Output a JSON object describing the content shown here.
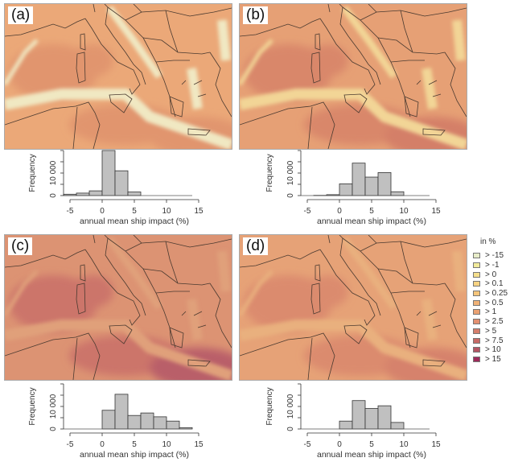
{
  "panels": [
    {
      "label": "(a)",
      "colors": {
        "base": "#eba878",
        "dark": "#e1956e",
        "darker": "#e1956e",
        "lane": "#f0e8c2"
      }
    },
    {
      "label": "(b)",
      "colors": {
        "base": "#e6a075",
        "dark": "#d9876b",
        "darker": "#d47f68",
        "lane": "#f2d596"
      }
    },
    {
      "label": "(c)",
      "colors": {
        "base": "#dc9373",
        "dark": "#cc746a",
        "darker": "#b95f69",
        "lane": "#e0a07a"
      }
    },
    {
      "label": "(d)",
      "colors": {
        "base": "#e6a277",
        "dark": "#db8b6e",
        "darker": "#d6826c",
        "lane": "#e9b07e"
      }
    }
  ],
  "legend": {
    "title": "in %",
    "items": [
      {
        "label": "> -15",
        "color": "#e7ecc8"
      },
      {
        "label": "> -1",
        "color": "#f1ea9a"
      },
      {
        "label": "> 0",
        "color": "#f5df8c"
      },
      {
        "label": "> 0.1",
        "color": "#f7d383"
      },
      {
        "label": "> 0.25",
        "color": "#f5c57c"
      },
      {
        "label": "> 0.5",
        "color": "#f0b277"
      },
      {
        "label": "> 1",
        "color": "#eaa172"
      },
      {
        "label": "> 2.5",
        "color": "#e39070"
      },
      {
        "label": "> 5",
        "color": "#d57e6c"
      },
      {
        "label": "> 7.5",
        "color": "#c86a66"
      },
      {
        "label": "> 10",
        "color": "#b55563"
      },
      {
        "label": "> 15",
        "color": "#9e2a5a"
      }
    ]
  },
  "chart_data": [
    {
      "type": "bar",
      "panel": "(a)",
      "xlabel": "annual mean ship impact (%)",
      "ylabel": "Frequency",
      "xticks": [
        -5,
        0,
        5,
        10,
        15
      ],
      "yticks": [
        {
          "v": 0,
          "label": "0"
        },
        {
          "v": 10000,
          "label": "10 000"
        }
      ],
      "xlim": [
        -5,
        15
      ],
      "ylim": [
        0,
        20000
      ],
      "bins": [
        {
          "from": -6,
          "to": -4,
          "count": 600
        },
        {
          "from": -4,
          "to": -2,
          "count": 1100
        },
        {
          "from": -2,
          "to": 0,
          "count": 2100
        },
        {
          "from": 0,
          "to": 2,
          "count": 20000
        },
        {
          "from": 2,
          "to": 4,
          "count": 11000
        },
        {
          "from": 4,
          "to": 6,
          "count": 1600
        }
      ]
    },
    {
      "type": "bar",
      "panel": "(b)",
      "xlabel": "annual mean ship impact (%)",
      "ylabel": "Frequency",
      "xticks": [
        -5,
        0,
        5,
        10,
        15
      ],
      "yticks": [
        {
          "v": 0,
          "label": "0"
        },
        {
          "v": 10000,
          "label": "10 000"
        }
      ],
      "xlim": [
        -5,
        15
      ],
      "ylim": [
        0,
        20000
      ],
      "bins": [
        {
          "from": -4,
          "to": -2,
          "count": 100
        },
        {
          "from": -2,
          "to": 0,
          "count": 400
        },
        {
          "from": 0,
          "to": 2,
          "count": 5200
        },
        {
          "from": 2,
          "to": 4,
          "count": 14400
        },
        {
          "from": 4,
          "to": 6,
          "count": 8200
        },
        {
          "from": 6,
          "to": 8,
          "count": 10200
        },
        {
          "from": 8,
          "to": 10,
          "count": 1700
        }
      ]
    },
    {
      "type": "bar",
      "panel": "(c)",
      "xlabel": "annual mean ship impact (%)",
      "ylabel": "Frequency",
      "xticks": [
        -5,
        0,
        5,
        10,
        15
      ],
      "yticks": [
        {
          "v": 0,
          "label": "0"
        },
        {
          "v": 10000,
          "label": "10 000"
        }
      ],
      "xlim": [
        -5,
        15
      ],
      "ylim": [
        0,
        20000
      ],
      "bins": [
        {
          "from": 0,
          "to": 2,
          "count": 8300
        },
        {
          "from": 2,
          "to": 4,
          "count": 15400
        },
        {
          "from": 4,
          "to": 6,
          "count": 6000
        },
        {
          "from": 6,
          "to": 8,
          "count": 7100
        },
        {
          "from": 8,
          "to": 10,
          "count": 5400
        },
        {
          "from": 10,
          "to": 12,
          "count": 3500
        },
        {
          "from": 12,
          "to": 14,
          "count": 600
        }
      ]
    },
    {
      "type": "bar",
      "panel": "(d)",
      "xlabel": "annual mean ship impact (%)",
      "ylabel": "Frequency",
      "xticks": [
        -5,
        0,
        5,
        10,
        15
      ],
      "yticks": [
        {
          "v": 0,
          "label": "0"
        },
        {
          "v": 10000,
          "label": "10 000"
        }
      ],
      "xlim": [
        -5,
        15
      ],
      "ylim": [
        0,
        20000
      ],
      "bins": [
        {
          "from": 0,
          "to": 2,
          "count": 3500
        },
        {
          "from": 2,
          "to": 4,
          "count": 12600
        },
        {
          "from": 4,
          "to": 6,
          "count": 9100
        },
        {
          "from": 6,
          "to": 8,
          "count": 10300
        },
        {
          "from": 8,
          "to": 10,
          "count": 2900
        }
      ]
    }
  ]
}
